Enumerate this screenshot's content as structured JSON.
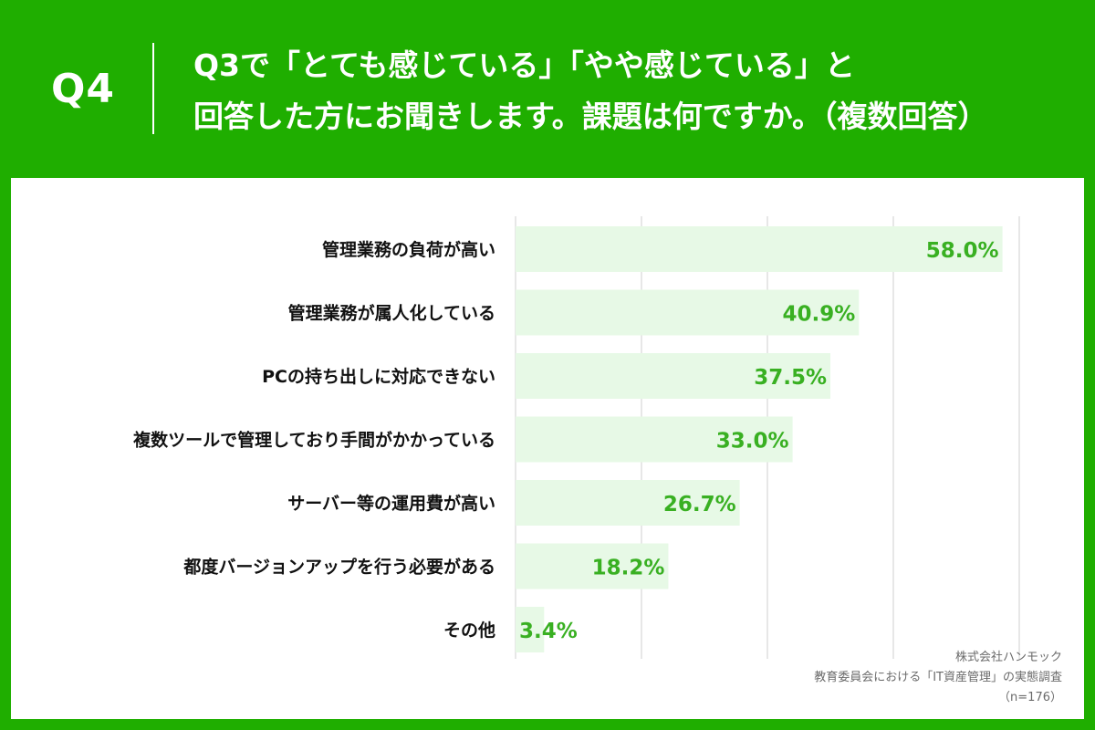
{
  "header": {
    "question_no": "Q4",
    "question_line1": "Q3で「とても感じている」「やや感じている」と",
    "question_line2": "回答した方にお聞きします。課題は何ですか。（複数回答）"
  },
  "source": {
    "company": "株式会社ハンモック",
    "survey": "教育委員会における「IT資産管理」の実態調査",
    "sample": "（n=176）"
  },
  "colors": {
    "background": "#1fae00",
    "bar": "#e7f9e6",
    "value_text": "#39b022",
    "grid": "#cfcfcf"
  },
  "chart_data": {
    "type": "bar",
    "orientation": "horizontal",
    "categories": [
      "管理業務の負荷が高い",
      "管理業務が属人化している",
      "PCの持ち出しに対応できない",
      "複数ツールで管理しており手間がかかっている",
      "サーバー等の運用費が高い",
      "都度バージョンアップを行う必要がある",
      "その他"
    ],
    "values": [
      58.0,
      40.9,
      37.5,
      33.0,
      26.7,
      18.2,
      3.4
    ],
    "value_labels": [
      "58.0%",
      "40.9%",
      "37.5%",
      "33.0%",
      "26.7%",
      "18.2%",
      "3.4%"
    ],
    "xlim": [
      0,
      60
    ],
    "grid": true
  }
}
